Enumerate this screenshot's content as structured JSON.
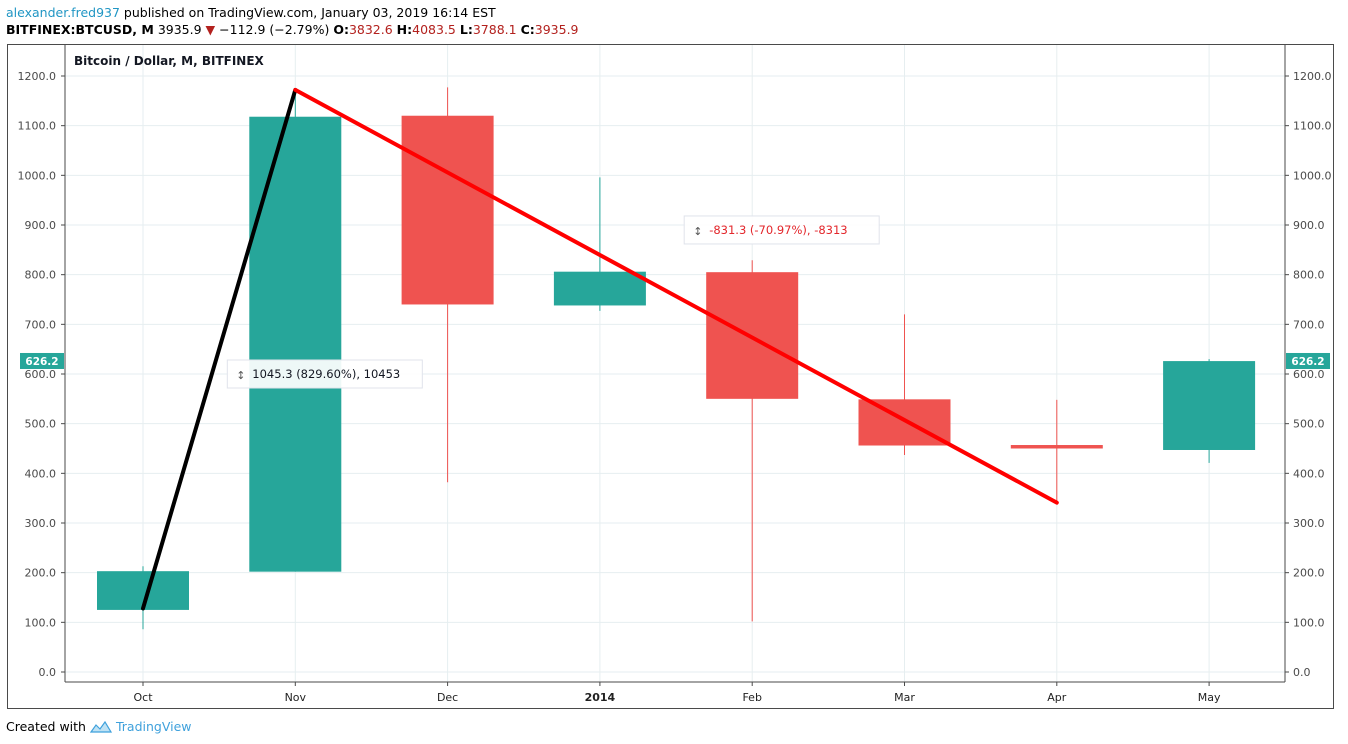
{
  "header": {
    "author": "alexander.fred937",
    "published_text": " published on TradingView.com, January 03, 2019 16:14 EST",
    "symbol": "BITFINEX:BTCUSD, M",
    "last_price": "3935.9",
    "change": "−112.9 (−2.79%)",
    "o_label": "O:",
    "o_value": "3832.6",
    "h_label": "H:",
    "h_value": "4083.5",
    "l_label": "L:",
    "l_value": "3788.1",
    "c_label": "C:",
    "c_value": "3935.9"
  },
  "footer": {
    "created_with": "Created with",
    "brand": "TradingView"
  },
  "colors": {
    "up": "#26a69a",
    "down": "#ef5350",
    "trend_up": "#000000",
    "trend_down": "#ff0000",
    "grid": "#e6eef0",
    "price_tag": "#26a69a"
  },
  "chart_data": {
    "type": "candlestick",
    "title": "Bitcoin / Dollar, M, BITFINEX",
    "ylim": [
      0,
      1200
    ],
    "yticks": [
      "0.0",
      "100.0",
      "200.0",
      "300.0",
      "400.0",
      "500.0",
      "600.0",
      "700.0",
      "800.0",
      "900.0",
      "1000.0",
      "1100.0",
      "1200.0"
    ],
    "categories": [
      "Oct",
      "Nov",
      "Dec",
      "2014",
      "Feb",
      "Mar",
      "Apr",
      "May"
    ],
    "bold_categories": [
      "2014"
    ],
    "candles": [
      {
        "label": "Oct",
        "open": 125,
        "high": 213,
        "low": 86,
        "close": 203
      },
      {
        "label": "Nov",
        "open": 202,
        "high": 1168,
        "low": 202,
        "close": 1118
      },
      {
        "label": "Dec",
        "open": 1120,
        "high": 1177,
        "low": 382,
        "close": 740
      },
      {
        "label": "2014",
        "open": 738,
        "high": 996,
        "low": 727,
        "close": 806
      },
      {
        "label": "Feb",
        "open": 805,
        "high": 829,
        "low": 102,
        "close": 550
      },
      {
        "label": "Mar",
        "open": 549,
        "high": 720,
        "low": 437,
        "close": 456
      },
      {
        "label": "Apr",
        "open": 457,
        "high": 548,
        "low": 340,
        "close": 450
      },
      {
        "label": "May",
        "open": 447,
        "high": 630,
        "low": 421,
        "close": 626
      }
    ],
    "current_price": "626.2",
    "trend_lines": [
      {
        "name": "rise",
        "from": {
          "x": "Oct",
          "y": 128
        },
        "to": {
          "x": "Nov",
          "y": 1172
        },
        "color": "#000000"
      },
      {
        "name": "fall",
        "from": {
          "x": "Nov",
          "y": 1172
        },
        "to": {
          "x": "Apr",
          "y": 341
        },
        "color": "#ff0000"
      }
    ],
    "annotations": [
      {
        "text": "1045.3 (829.60%), 10453",
        "color": "#131722",
        "anchor_x": "Nov",
        "anchor_y": 600
      },
      {
        "text": "-831.3 (-70.97%), -8313",
        "color": "#e3262b",
        "anchor_x": "Feb",
        "anchor_y": 890
      }
    ]
  }
}
